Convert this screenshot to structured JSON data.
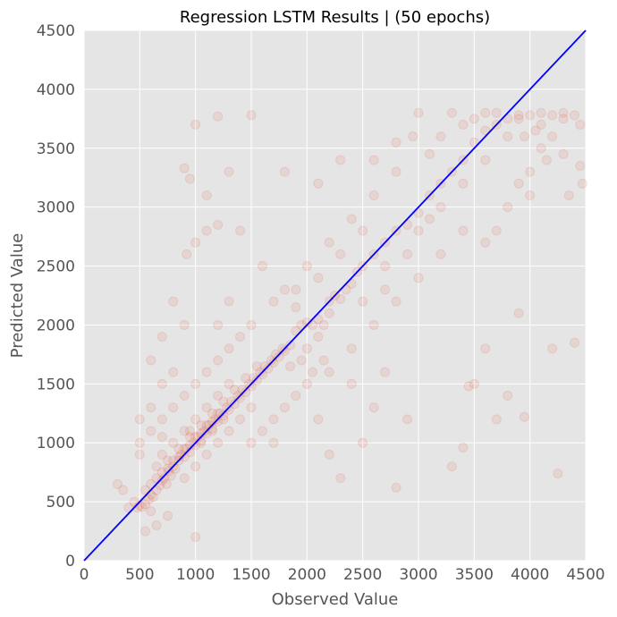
{
  "chart_data": {
    "type": "scatter",
    "title": "Regression LSTM Results | (50 epochs)",
    "xlabel": "Observed Value",
    "ylabel": "Predicted Value",
    "xlim": [
      0,
      4500
    ],
    "ylim": [
      0,
      4500
    ],
    "xticks": [
      0,
      500,
      1000,
      1500,
      2000,
      2500,
      3000,
      3500,
      4000,
      4500
    ],
    "yticks": [
      0,
      500,
      1000,
      1500,
      2000,
      2500,
      3000,
      3500,
      4000,
      4500
    ],
    "grid": true,
    "background": "#e5e5e5",
    "point_color": "#e24a33",
    "point_opacity": 0.1,
    "reference_line": {
      "x": [
        0,
        4500
      ],
      "y": [
        0,
        4500
      ],
      "color": "#0000ff"
    },
    "series": [
      {
        "points": [
          [
            480,
            450
          ],
          [
            500,
            470
          ],
          [
            520,
            455
          ],
          [
            550,
            480
          ],
          [
            580,
            520
          ],
          [
            600,
            560
          ],
          [
            620,
            540
          ],
          [
            650,
            600
          ],
          [
            680,
            640
          ],
          [
            700,
            680
          ],
          [
            720,
            700
          ],
          [
            740,
            650
          ],
          [
            760,
            760
          ],
          [
            780,
            720
          ],
          [
            800,
            800
          ],
          [
            820,
            780
          ],
          [
            850,
            850
          ],
          [
            870,
            900
          ],
          [
            900,
            880
          ],
          [
            920,
            950
          ],
          [
            950,
            920
          ],
          [
            980,
            1000
          ],
          [
            1000,
            980
          ],
          [
            1020,
            1050
          ],
          [
            1050,
            1020
          ],
          [
            1080,
            1100
          ],
          [
            1100,
            1080
          ],
          [
            1120,
            1150
          ],
          [
            1150,
            1120
          ],
          [
            1180,
            1200
          ],
          [
            1200,
            1180
          ],
          [
            1220,
            1250
          ],
          [
            1250,
            1230
          ],
          [
            1280,
            1300
          ],
          [
            1300,
            1280
          ],
          [
            1320,
            1350
          ],
          [
            1350,
            1330
          ],
          [
            1380,
            1400
          ],
          [
            1400,
            1380
          ],
          [
            1420,
            1450
          ],
          [
            1450,
            1430
          ],
          [
            1480,
            1500
          ],
          [
            1500,
            1480
          ],
          [
            1520,
            1550
          ],
          [
            1550,
            1530
          ],
          [
            1580,
            1600
          ],
          [
            1600,
            1580
          ],
          [
            1620,
            1650
          ],
          [
            1650,
            1630
          ],
          [
            1680,
            1700
          ],
          [
            1700,
            1680
          ],
          [
            1720,
            1750
          ],
          [
            1750,
            1730
          ],
          [
            1780,
            1800
          ],
          [
            1800,
            1780
          ],
          [
            1850,
            1830
          ],
          [
            1900,
            1950
          ],
          [
            1950,
            2000
          ],
          [
            2000,
            2020
          ],
          [
            2050,
            2000
          ],
          [
            2100,
            2050
          ],
          [
            2150,
            2000
          ],
          [
            2200,
            2200
          ],
          [
            2250,
            2250
          ],
          [
            2300,
            2220
          ],
          [
            2350,
            2300
          ],
          [
            2400,
            2350
          ],
          [
            2450,
            2450
          ],
          [
            2500,
            2500
          ],
          [
            2600,
            2600
          ],
          [
            2700,
            2700
          ],
          [
            2800,
            2800
          ],
          [
            2900,
            2850
          ],
          [
            3000,
            2950
          ],
          [
            3100,
            3100
          ],
          [
            3200,
            3200
          ],
          [
            3300,
            3300
          ],
          [
            3400,
            3400
          ],
          [
            3500,
            3550
          ],
          [
            3600,
            3650
          ],
          [
            3700,
            3700
          ],
          [
            3800,
            3750
          ],
          [
            3900,
            3780
          ],
          [
            4000,
            3780
          ],
          [
            4100,
            3800
          ],
          [
            4200,
            3780
          ],
          [
            4300,
            3800
          ],
          [
            4400,
            3780
          ],
          [
            4450,
            3700
          ],
          [
            700,
            900
          ],
          [
            800,
            1000
          ],
          [
            900,
            1100
          ],
          [
            1000,
            1200
          ],
          [
            1100,
            1300
          ],
          [
            1200,
            1400
          ],
          [
            1300,
            1500
          ],
          [
            900,
            700
          ],
          [
            1000,
            800
          ],
          [
            1100,
            900
          ],
          [
            1200,
            1000
          ],
          [
            1300,
            1100
          ],
          [
            1400,
            1200
          ],
          [
            1500,
            1300
          ],
          [
            950,
            1100
          ],
          [
            1050,
            1150
          ],
          [
            1150,
            1250
          ],
          [
            1250,
            1350
          ],
          [
            1350,
            1450
          ],
          [
            1450,
            1550
          ],
          [
            1550,
            1650
          ],
          [
            650,
            800
          ],
          [
            750,
            850
          ],
          [
            850,
            950
          ],
          [
            950,
            1050
          ],
          [
            1050,
            1000
          ],
          [
            1150,
            1100
          ],
          [
            1250,
            1200
          ],
          [
            600,
            650
          ],
          [
            700,
            750
          ],
          [
            800,
            850
          ],
          [
            900,
            950
          ],
          [
            1000,
            1050
          ],
          [
            1100,
            1150
          ],
          [
            1200,
            1250
          ],
          [
            550,
            600
          ],
          [
            650,
            700
          ],
          [
            750,
            780
          ],
          [
            850,
            880
          ],
          [
            950,
            980
          ],
          [
            1050,
            1080
          ],
          [
            1150,
            1180
          ],
          [
            1000,
            1500
          ],
          [
            1200,
            1700
          ],
          [
            1100,
            1600
          ],
          [
            900,
            1400
          ],
          [
            1300,
            1800
          ],
          [
            800,
            1300
          ],
          [
            1400,
            1900
          ],
          [
            1500,
            1000
          ],
          [
            1600,
            1100
          ],
          [
            1700,
            1200
          ],
          [
            1800,
            1300
          ],
          [
            1900,
            1400
          ],
          [
            2000,
            1500
          ],
          [
            1700,
            1000
          ],
          [
            2200,
            1600
          ],
          [
            2400,
            1800
          ],
          [
            2600,
            2000
          ],
          [
            2800,
            2200
          ],
          [
            3000,
            2400
          ],
          [
            3200,
            2600
          ],
          [
            3400,
            2800
          ],
          [
            2000,
            2500
          ],
          [
            2200,
            2700
          ],
          [
            2400,
            2900
          ],
          [
            2600,
            3100
          ],
          [
            2800,
            3300
          ],
          [
            2500,
            2200
          ],
          [
            2700,
            2500
          ],
          [
            3000,
            2800
          ],
          [
            3200,
            3000
          ],
          [
            3400,
            3200
          ],
          [
            3600,
            3400
          ],
          [
            3800,
            3600
          ],
          [
            3600,
            3800
          ],
          [
            3400,
            3700
          ],
          [
            3300,
            3800
          ],
          [
            3500,
            3750
          ],
          [
            3700,
            3800
          ],
          [
            3900,
            3750
          ],
          [
            4100,
            3700
          ],
          [
            4200,
            3600
          ],
          [
            4300,
            3750
          ],
          [
            3600,
            2700
          ],
          [
            3700,
            2800
          ],
          [
            3800,
            3000
          ],
          [
            3900,
            3200
          ],
          [
            4000,
            3300
          ],
          [
            4100,
            3500
          ],
          [
            4300,
            3450
          ],
          [
            3900,
            2100
          ],
          [
            3600,
            1800
          ],
          [
            3500,
            1500
          ],
          [
            3800,
            1400
          ],
          [
            3700,
            1200
          ],
          [
            3400,
            960
          ],
          [
            3300,
            800
          ],
          [
            4400,
            1850
          ],
          [
            4200,
            1800
          ],
          [
            4250,
            740
          ],
          [
            3950,
            1220
          ],
          [
            3450,
            1480
          ],
          [
            2900,
            1200
          ],
          [
            2600,
            1300
          ],
          [
            2500,
            1000
          ],
          [
            2300,
            700
          ],
          [
            2800,
            620
          ],
          [
            2200,
            900
          ],
          [
            2100,
            1200
          ],
          [
            2400,
            1500
          ],
          [
            2700,
            1600
          ],
          [
            1000,
            3700
          ],
          [
            1200,
            3770
          ],
          [
            1500,
            3780
          ],
          [
            1800,
            3300
          ],
          [
            2100,
            3200
          ],
          [
            2600,
            3400
          ],
          [
            2800,
            3550
          ],
          [
            900,
            3330
          ],
          [
            950,
            3240
          ],
          [
            1000,
            2700
          ],
          [
            920,
            2600
          ],
          [
            1100,
            2800
          ],
          [
            1200,
            2850
          ],
          [
            1400,
            2800
          ],
          [
            1600,
            2500
          ],
          [
            1700,
            2200
          ],
          [
            1300,
            2200
          ],
          [
            1500,
            2000
          ],
          [
            1200,
            2000
          ],
          [
            1800,
            2300
          ],
          [
            1900,
            2300
          ],
          [
            800,
            2200
          ],
          [
            900,
            2000
          ],
          [
            700,
            1900
          ],
          [
            600,
            1700
          ],
          [
            800,
            1600
          ],
          [
            700,
            1500
          ],
          [
            1000,
            200
          ],
          [
            300,
            650
          ],
          [
            350,
            600
          ],
          [
            400,
            450
          ],
          [
            450,
            500
          ],
          [
            550,
            250
          ],
          [
            650,
            300
          ],
          [
            750,
            380
          ],
          [
            600,
            420
          ],
          [
            500,
            900
          ],
          [
            500,
            1000
          ],
          [
            600,
            1100
          ],
          [
            700,
            1200
          ],
          [
            600,
            1300
          ],
          [
            500,
            1200
          ],
          [
            700,
            1050
          ],
          [
            1100,
            3100
          ],
          [
            1300,
            3300
          ],
          [
            2300,
            3400
          ],
          [
            3000,
            3800
          ],
          [
            3200,
            3600
          ],
          [
            3100,
            3450
          ],
          [
            2950,
            3600
          ],
          [
            2500,
            2800
          ],
          [
            2300,
            2600
          ],
          [
            2100,
            2400
          ],
          [
            1900,
            2150
          ],
          [
            2700,
            2300
          ],
          [
            2900,
            2600
          ],
          [
            3100,
            2900
          ],
          [
            2000,
            1800
          ],
          [
            2100,
            1900
          ],
          [
            2200,
            2100
          ],
          [
            1950,
            1700
          ],
          [
            1850,
            1650
          ],
          [
            2050,
            1600
          ],
          [
            2150,
            1700
          ],
          [
            4470,
            3200
          ],
          [
            4350,
            3100
          ],
          [
            4450,
            3350
          ],
          [
            3950,
            3600
          ],
          [
            4050,
            3650
          ],
          [
            4150,
            3400
          ],
          [
            4000,
            3100
          ]
        ]
      }
    ]
  }
}
